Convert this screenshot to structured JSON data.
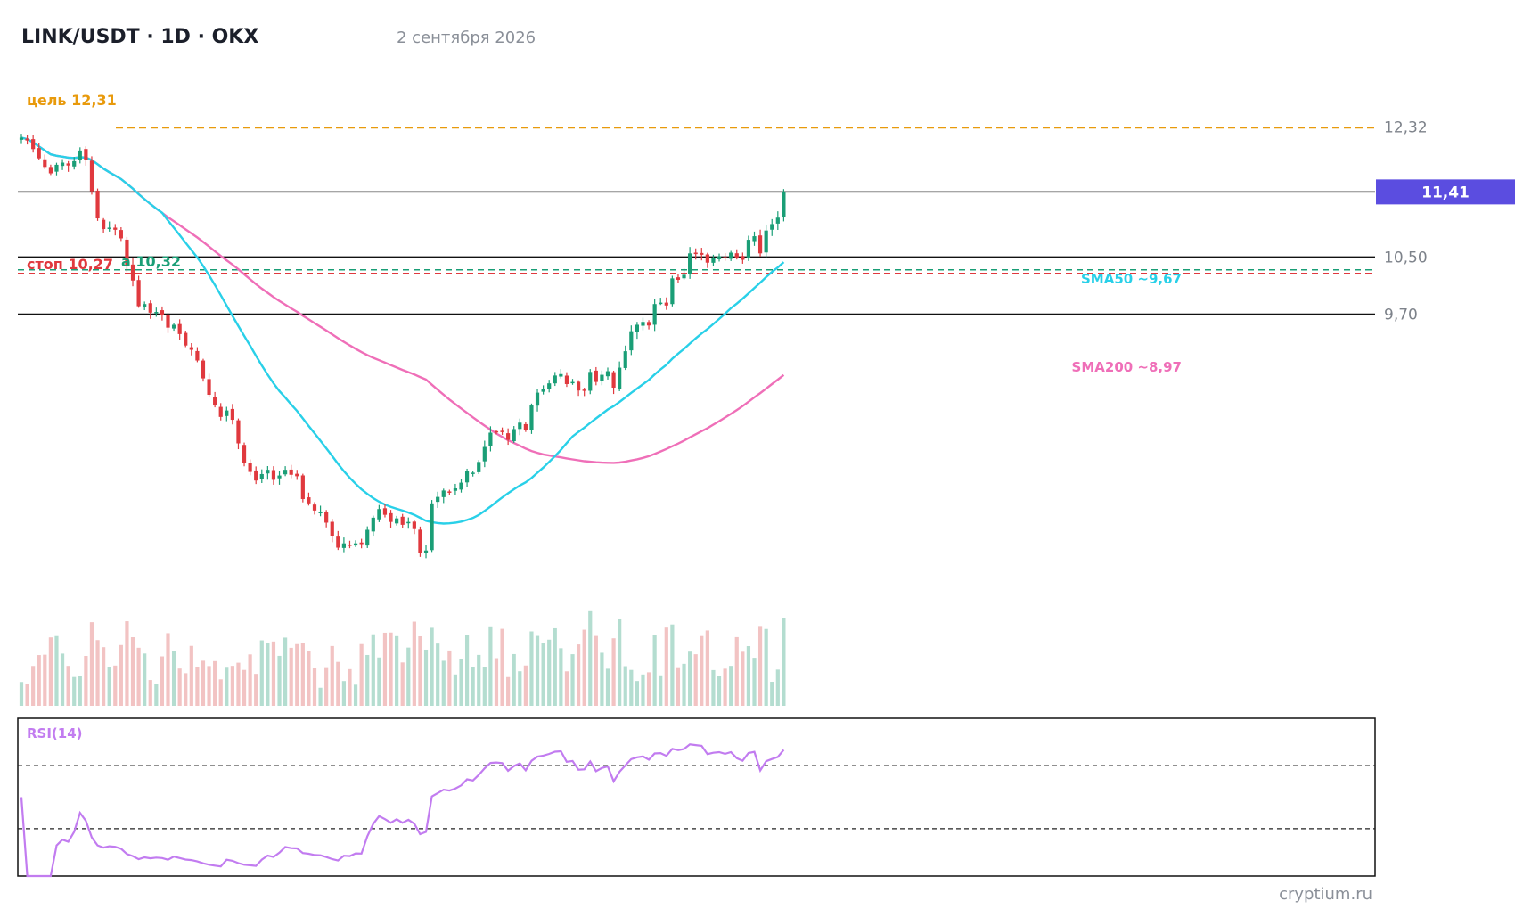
{
  "header": {
    "title": "LINK/USDT · 1D · OKX",
    "date": "2 сентября 2026"
  },
  "watermark": "cryptium.ru",
  "price_axis": {
    "labels": [
      {
        "value": 12.32,
        "text": "12,32"
      },
      {
        "value": 10.5,
        "text": "10,50"
      },
      {
        "value": 9.7,
        "text": "9,70"
      }
    ],
    "current": {
      "value": 11.41,
      "text": "11,41"
    }
  },
  "levels": {
    "target": {
      "value": 12.31,
      "label": "цель 12,31",
      "color": "#e89a0c"
    },
    "entry": {
      "value": 10.32,
      "label": "а 10,32",
      "color": "#1a9e76"
    },
    "stop": {
      "value": 10.27,
      "label": "стоп 10,27",
      "color": "#e0393e"
    },
    "resistance": [
      11.41,
      10.5,
      9.7
    ]
  },
  "indicators": {
    "sma50": {
      "label": "SMA50 ~9,67",
      "color": "#29d0e8"
    },
    "sma200": {
      "label": "SMA200 ~8,97",
      "color": "#ef6fb8"
    },
    "rsi": {
      "label": "RSI(14)",
      "color": "#c27cf0"
    }
  },
  "colors": {
    "up": "#1a9e76",
    "down": "#e0393e",
    "up_volume": "#b4ddd0",
    "down_volume": "#f2c3c3",
    "current_tag": "#5b4de0"
  },
  "chart_data": {
    "type": "candlestick",
    "title": "LINK/USDT · 1D · OKX",
    "ylim": [
      5.95,
      12.55
    ],
    "closes": [
      12.17,
      12.13,
      12.01,
      11.88,
      11.76,
      11.67,
      11.79,
      11.82,
      11.78,
      11.84,
      11.99,
      11.86,
      11.42,
      11.04,
      10.89,
      10.91,
      10.88,
      10.76,
      10.37,
      10.17,
      9.81,
      9.84,
      9.72,
      9.73,
      9.69,
      9.51,
      9.55,
      9.42,
      9.26,
      9.2,
      9.05,
      8.8,
      8.57,
      8.42,
      8.26,
      8.35,
      8.22,
      7.89,
      7.61,
      7.49,
      7.37,
      7.46,
      7.52,
      7.38,
      7.44,
      7.52,
      7.45,
      7.43,
      7.11,
      7.05,
      6.95,
      6.93,
      6.78,
      6.59,
      6.43,
      6.49,
      6.46,
      6.49,
      6.48,
      6.68,
      6.85,
      6.97,
      6.89,
      6.79,
      6.84,
      6.75,
      6.79,
      6.69,
      6.36,
      6.39,
      7.05,
      7.14,
      7.23,
      7.21,
      7.26,
      7.34,
      7.5,
      7.48,
      7.63,
      7.84,
      8.04,
      8.06,
      8.05,
      7.94,
      8.09,
      8.18,
      8.08,
      8.42,
      8.6,
      8.65,
      8.73,
      8.84,
      8.86,
      8.72,
      8.75,
      8.63,
      8.64,
      8.89,
      8.75,
      8.85,
      8.9,
      8.67,
      8.95,
      9.18,
      9.46,
      9.55,
      9.59,
      9.54,
      9.84,
      9.86,
      9.82,
      10.2,
      10.18,
      10.25,
      10.55,
      10.54,
      10.53,
      10.42,
      10.48,
      10.51,
      10.49,
      10.56,
      10.49,
      10.46,
      10.74,
      10.79,
      10.55,
      10.87,
      10.96,
      11.05,
      11.41
    ],
    "volume_range": [
      0,
      1
    ],
    "rsi": {
      "ylim": [
        0,
        100
      ],
      "overbought": 70,
      "oversold": 30
    },
    "legend": []
  }
}
